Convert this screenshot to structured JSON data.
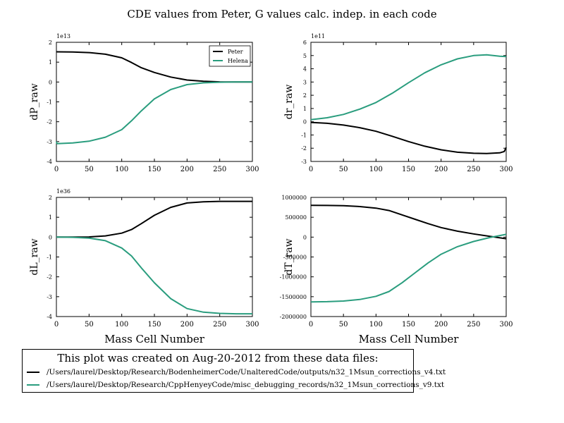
{
  "title": "CDE values from Peter, G values calc. indep. in each code",
  "colors": {
    "peter": "#000000",
    "helena": "#2a9d7e"
  },
  "legend": [
    "Peter",
    "Helena"
  ],
  "files_box": {
    "title": "This plot was created on Aug-20-2012 from these data files:",
    "files": [
      "/Users/laurel/Desktop/Research/BodenheimerCode/UnalteredCode/outputs/n32_1Msun_corrections_v4.txt",
      "/Users/laurel/Desktop/Research/CppHenyeyCode/misc_debugging_records/n32_1Msun_corrections_v9.txt"
    ]
  },
  "chart_data": [
    {
      "type": "line",
      "ylabel": "dP_raw",
      "xlabel": "",
      "exponent": "1e13",
      "xlim": [
        0,
        300
      ],
      "ylim": [
        -4,
        2
      ],
      "xticks": [
        0,
        50,
        100,
        150,
        200,
        250,
        300
      ],
      "yticks": [
        2,
        1,
        0,
        -1,
        -2,
        -3,
        -4
      ],
      "series": [
        {
          "name": "Peter",
          "x": [
            0,
            25,
            50,
            75,
            100,
            115,
            130,
            150,
            175,
            200,
            225,
            250,
            275,
            300
          ],
          "y": [
            1.52,
            1.51,
            1.48,
            1.4,
            1.22,
            0.98,
            0.72,
            0.48,
            0.25,
            0.1,
            0.04,
            0.01,
            0.0,
            0.0
          ]
        },
        {
          "name": "Helena",
          "x": [
            0,
            1,
            25,
            50,
            75,
            100,
            115,
            130,
            150,
            175,
            200,
            225,
            250,
            275,
            300
          ],
          "y": [
            -3.0,
            -3.1,
            -3.07,
            -2.98,
            -2.78,
            -2.4,
            -1.95,
            -1.45,
            -0.85,
            -0.38,
            -0.13,
            -0.04,
            -0.01,
            0.0,
            0.0
          ]
        }
      ]
    },
    {
      "type": "line",
      "ylabel": "dr_raw",
      "xlabel": "",
      "exponent": "1e11",
      "xlim": [
        0,
        300
      ],
      "ylim": [
        -3,
        6
      ],
      "xticks": [
        0,
        50,
        100,
        150,
        200,
        250,
        300
      ],
      "yticks": [
        6,
        5,
        4,
        3,
        2,
        1,
        0,
        -1,
        -2,
        -3
      ],
      "series": [
        {
          "name": "Peter",
          "x": [
            0,
            25,
            50,
            75,
            100,
            125,
            150,
            175,
            200,
            225,
            250,
            270,
            290,
            297,
            300
          ],
          "y": [
            -0.05,
            -0.12,
            -0.25,
            -0.45,
            -0.72,
            -1.1,
            -1.5,
            -1.85,
            -2.12,
            -2.3,
            -2.38,
            -2.4,
            -2.35,
            -2.25,
            -1.95
          ]
        },
        {
          "name": "Helena",
          "x": [
            0,
            25,
            50,
            75,
            100,
            125,
            150,
            175,
            200,
            225,
            250,
            270,
            290,
            300
          ],
          "y": [
            0.15,
            0.3,
            0.55,
            0.95,
            1.45,
            2.15,
            2.95,
            3.7,
            4.3,
            4.75,
            5.0,
            5.05,
            4.95,
            4.92
          ]
        }
      ]
    },
    {
      "type": "line",
      "ylabel": "dL_raw",
      "xlabel": "Mass Cell Number",
      "exponent": "1e36",
      "xlim": [
        0,
        300
      ],
      "ylim": [
        -4,
        2
      ],
      "xticks": [
        0,
        50,
        100,
        150,
        200,
        250,
        300
      ],
      "yticks": [
        2,
        1,
        0,
        -1,
        -2,
        -3,
        -4
      ],
      "series": [
        {
          "name": "Peter",
          "x": [
            0,
            25,
            50,
            75,
            100,
            115,
            130,
            150,
            175,
            200,
            225,
            250,
            275,
            300
          ],
          "y": [
            0.0,
            0.0,
            0.01,
            0.06,
            0.2,
            0.38,
            0.68,
            1.1,
            1.5,
            1.72,
            1.78,
            1.8,
            1.8,
            1.8
          ]
        },
        {
          "name": "Helena",
          "x": [
            0,
            25,
            50,
            75,
            100,
            115,
            130,
            150,
            175,
            200,
            225,
            250,
            275,
            300
          ],
          "y": [
            0.0,
            -0.01,
            -0.05,
            -0.18,
            -0.55,
            -0.95,
            -1.55,
            -2.3,
            -3.1,
            -3.6,
            -3.78,
            -3.84,
            -3.86,
            -3.86
          ]
        }
      ]
    },
    {
      "type": "line",
      "ylabel": "dT_raw",
      "xlabel": "Mass Cell Number",
      "exponent": "",
      "xlim": [
        0,
        300
      ],
      "ylim": [
        -2000000,
        1000000
      ],
      "xticks": [
        0,
        50,
        100,
        150,
        200,
        250,
        300
      ],
      "yticks": [
        1000000,
        500000,
        0,
        -500000,
        -1000000,
        -1500000,
        -2000000
      ],
      "series": [
        {
          "name": "Peter",
          "x": [
            0,
            25,
            50,
            75,
            100,
            120,
            140,
            160,
            180,
            200,
            225,
            250,
            275,
            300
          ],
          "y": [
            800000,
            798000,
            790000,
            770000,
            730000,
            670000,
            560000,
            450000,
            340000,
            240000,
            150000,
            80000,
            20000,
            -40000
          ]
        },
        {
          "name": "Helena",
          "x": [
            0,
            25,
            50,
            75,
            100,
            120,
            140,
            160,
            180,
            200,
            225,
            250,
            275,
            300
          ],
          "y": [
            -1630000,
            -1625000,
            -1610000,
            -1570000,
            -1490000,
            -1370000,
            -1150000,
            -900000,
            -650000,
            -430000,
            -240000,
            -110000,
            -10000,
            70000
          ]
        }
      ]
    }
  ]
}
